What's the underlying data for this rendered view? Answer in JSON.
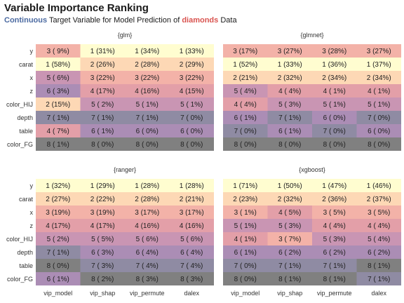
{
  "title": "Variable Importance Ranking",
  "subtitle": {
    "part1": "Continuous",
    "part2": " Target Variable for Model Prediction of ",
    "part3": "diamonds",
    "part4": " Data"
  },
  "chart_data": {
    "type": "heatmap",
    "rows": [
      "y",
      "carat",
      "x",
      "z",
      "color_HIJ",
      "depth",
      "table",
      "color_FG"
    ],
    "columns": [
      "vip_model",
      "vip_shap",
      "vip_permute",
      "dalex"
    ],
    "color_by_rank": {
      "1": "#fffdd0",
      "2": "#fdd8b5",
      "3": "#f3b2a8",
      "4": "#e39fa8",
      "5": "#c995b3",
      "6": "#ab8db5",
      "7": "#8f8ba3",
      "8": "#808080"
    },
    "panels": [
      {
        "name": "{glm}",
        "cells": [
          [
            "3 ( 9%)",
            "1 (31%)",
            "1 (34%)",
            "1 (33%)"
          ],
          [
            "1 (58%)",
            "2 (26%)",
            "2 (28%)",
            "2 (29%)"
          ],
          [
            "5 ( 6%)",
            "3 (22%)",
            "3 (22%)",
            "3 (22%)"
          ],
          [
            "6 ( 3%)",
            "4 (17%)",
            "4 (16%)",
            "4 (15%)"
          ],
          [
            "2 (15%)",
            "5 ( 2%)",
            "5 ( 1%)",
            "5 ( 1%)"
          ],
          [
            "7 ( 1%)",
            "7 ( 1%)",
            "7 ( 1%)",
            "7 ( 0%)"
          ],
          [
            "4 ( 7%)",
            "6 ( 1%)",
            "6 ( 0%)",
            "6 ( 0%)"
          ],
          [
            "8 ( 1%)",
            "8 ( 0%)",
            "8 ( 0%)",
            "8 ( 0%)"
          ]
        ]
      },
      {
        "name": "{glmnet}",
        "cells": [
          [
            "3 (17%)",
            "3 (27%)",
            "3 (28%)",
            "3 (27%)"
          ],
          [
            "1 (52%)",
            "1 (33%)",
            "1 (36%)",
            "1 (37%)"
          ],
          [
            "2 (21%)",
            "2 (32%)",
            "2 (34%)",
            "2 (34%)"
          ],
          [
            "5 ( 4%)",
            "4 ( 4%)",
            "4 ( 1%)",
            "4 ( 1%)"
          ],
          [
            "4 ( 4%)",
            "5 ( 3%)",
            "5 ( 1%)",
            "5 ( 1%)"
          ],
          [
            "6 ( 1%)",
            "7 ( 1%)",
            "6 ( 0%)",
            "7 ( 0%)"
          ],
          [
            "7 ( 0%)",
            "6 ( 1%)",
            "7 ( 0%)",
            "6 ( 0%)"
          ],
          [
            "8 ( 0%)",
            "8 ( 0%)",
            "8 ( 0%)",
            "8 ( 0%)"
          ]
        ]
      },
      {
        "name": "{ranger}",
        "cells": [
          [
            "1 (32%)",
            "1 (29%)",
            "1 (28%)",
            "1 (28%)"
          ],
          [
            "2 (27%)",
            "2 (22%)",
            "2 (28%)",
            "2 (21%)"
          ],
          [
            "3 (19%)",
            "3 (19%)",
            "3 (17%)",
            "3 (17%)"
          ],
          [
            "4 (17%)",
            "4 (17%)",
            "4 (16%)",
            "4 (16%)"
          ],
          [
            "5 ( 2%)",
            "5 ( 5%)",
            "5 ( 6%)",
            "5 ( 6%)"
          ],
          [
            "7 ( 1%)",
            "6 ( 3%)",
            "6 ( 4%)",
            "6 ( 4%)"
          ],
          [
            "8 ( 0%)",
            "7 ( 3%)",
            "7 ( 4%)",
            "7 ( 4%)"
          ],
          [
            "6 ( 1%)",
            "8 ( 2%)",
            "8 ( 3%)",
            "8 ( 3%)"
          ]
        ]
      },
      {
        "name": "{xgboost}",
        "cells": [
          [
            "1 (71%)",
            "1 (50%)",
            "1 (47%)",
            "1 (46%)"
          ],
          [
            "2 (23%)",
            "2 (32%)",
            "2 (36%)",
            "2 (37%)"
          ],
          [
            "3 ( 1%)",
            "4 ( 5%)",
            "3 ( 5%)",
            "3 ( 5%)"
          ],
          [
            "5 ( 1%)",
            "5 ( 3%)",
            "4 ( 4%)",
            "4 ( 4%)"
          ],
          [
            "4 ( 1%)",
            "3 ( 7%)",
            "5 ( 3%)",
            "5 ( 4%)"
          ],
          [
            "6 ( 1%)",
            "6 ( 2%)",
            "6 ( 2%)",
            "6 ( 2%)"
          ],
          [
            "7 ( 0%)",
            "7 ( 1%)",
            "7 ( 1%)",
            "8 ( 1%)"
          ],
          [
            "8 ( 0%)",
            "8 ( 1%)",
            "8 ( 1%)",
            "7 ( 1%)"
          ]
        ]
      }
    ]
  }
}
